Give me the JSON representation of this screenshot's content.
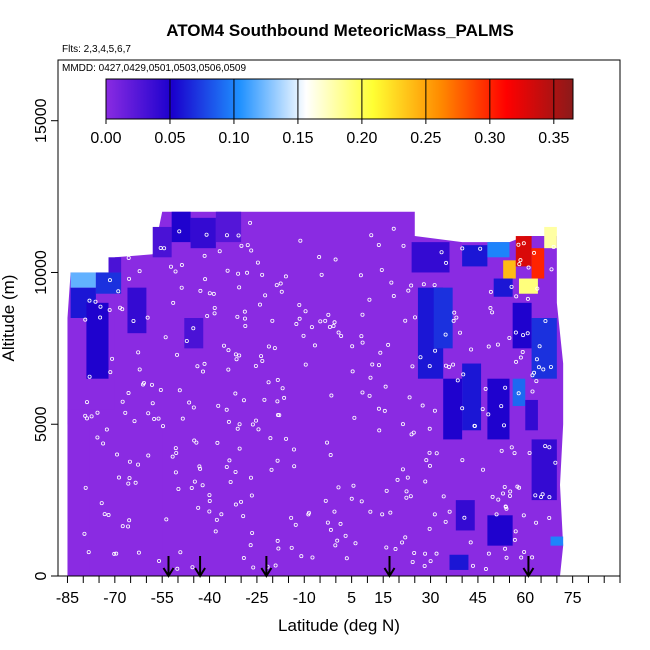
{
  "chart_data": {
    "type": "heatmap",
    "title": "ATOM4 Southbound MeteoricMass_PALMS",
    "subtitle_flights": "Flts: 2,3,4,5,6,7",
    "subtitle_dates": "MMDD: 0427,0429,0501,0503,0506,0509",
    "xlabel": "Latitude (deg N)",
    "ylabel": "Altitude (m)",
    "xlim": [
      -88,
      90
    ],
    "ylim": [
      0,
      17000
    ],
    "x_ticks": [
      -85,
      -70,
      -55,
      -40,
      -25,
      -10,
      5,
      15,
      30,
      45,
      60,
      75
    ],
    "x_tick_labels": [
      "-85",
      "-70",
      "-55",
      "-40",
      "-25",
      "-10",
      "5",
      "15",
      "30",
      "45",
      "60",
      "75"
    ],
    "y_ticks": [
      0,
      5000,
      10000,
      15000
    ],
    "y_tick_labels": [
      "0",
      "5000",
      "10000",
      "15000"
    ],
    "colorbar": {
      "min": 0.0,
      "max": 0.365,
      "ticks": [
        0.0,
        0.05,
        0.1,
        0.15,
        0.2,
        0.25,
        0.3,
        0.35
      ],
      "tick_labels": [
        "0.00",
        "0.05",
        "0.10",
        "0.15",
        "0.20",
        "0.25",
        "0.30",
        "0.35"
      ],
      "colors": [
        "#8a2be2",
        "#1a00cd",
        "#1e90ff",
        "#ffffff",
        "#ffff33",
        "#ff8c00",
        "#ff0000",
        "#8b1a1a"
      ]
    },
    "arrow_latitudes": [
      -53,
      -43,
      -22,
      17,
      61
    ],
    "regions": [
      {
        "x": [
          -85,
          -78
        ],
        "y": [
          0,
          5500
        ],
        "v": 0.0
      },
      {
        "x": [
          -84,
          -70
        ],
        "y": [
          5500,
          10000
        ],
        "v": 0.0
      },
      {
        "x": [
          -84,
          -76
        ],
        "y": [
          8500,
          9500
        ],
        "v": 0.06
      },
      {
        "x": [
          -79,
          -72
        ],
        "y": [
          6500,
          9000
        ],
        "v": 0.05
      },
      {
        "x": [
          -84,
          -76
        ],
        "y": [
          9500,
          10000
        ],
        "v": 0.12
      },
      {
        "x": [
          -76,
          -68
        ],
        "y": [
          9300,
          10000
        ],
        "v": 0.07
      },
      {
        "x": [
          -72,
          -68
        ],
        "y": [
          10000,
          10500
        ],
        "v": 0.03
      },
      {
        "x": [
          -66,
          -60
        ],
        "y": [
          8000,
          9500
        ],
        "v": 0.04
      },
      {
        "x": [
          -58,
          -52
        ],
        "y": [
          10500,
          11500
        ],
        "v": 0.03
      },
      {
        "x": [
          -52,
          -46
        ],
        "y": [
          11000,
          12000
        ],
        "v": 0.05
      },
      {
        "x": [
          -46,
          -38
        ],
        "y": [
          10800,
          11800
        ],
        "v": 0.04
      },
      {
        "x": [
          -38,
          -30
        ],
        "y": [
          11000,
          12000
        ],
        "v": 0.025
      },
      {
        "x": [
          -48,
          -42
        ],
        "y": [
          7500,
          8500
        ],
        "v": 0.03
      },
      {
        "x": [
          24,
          36
        ],
        "y": [
          10000,
          11000
        ],
        "v": 0.04
      },
      {
        "x": [
          26,
          34
        ],
        "y": [
          6500,
          9500
        ],
        "v": 0.06
      },
      {
        "x": [
          31,
          37
        ],
        "y": [
          7500,
          9500
        ],
        "v": 0.07
      },
      {
        "x": [
          34,
          40
        ],
        "y": [
          4500,
          6500
        ],
        "v": 0.05
      },
      {
        "x": [
          40,
          46
        ],
        "y": [
          4800,
          7000
        ],
        "v": 0.06
      },
      {
        "x": [
          38,
          44
        ],
        "y": [
          1500,
          2500
        ],
        "v": 0.04
      },
      {
        "x": [
          36,
          42
        ],
        "y": [
          200,
          700
        ],
        "v": 0.06
      },
      {
        "x": [
          40,
          48
        ],
        "y": [
          10200,
          10900
        ],
        "v": 0.06
      },
      {
        "x": [
          48,
          55
        ],
        "y": [
          10500,
          11000
        ],
        "v": 0.1
      },
      {
        "x": [
          53,
          57
        ],
        "y": [
          9800,
          10400
        ],
        "v": 0.24
      },
      {
        "x": [
          57,
          62
        ],
        "y": [
          10200,
          11200
        ],
        "v": 0.33
      },
      {
        "x": [
          62,
          66
        ],
        "y": [
          9800,
          10800
        ],
        "v": 0.3
      },
      {
        "x": [
          66,
          70
        ],
        "y": [
          10800,
          11500
        ],
        "v": 0.18
      },
      {
        "x": [
          58,
          64
        ],
        "y": [
          9300,
          9800
        ],
        "v": 0.19
      },
      {
        "x": [
          50,
          56
        ],
        "y": [
          9200,
          9800
        ],
        "v": 0.06
      },
      {
        "x": [
          56,
          62
        ],
        "y": [
          7500,
          9000
        ],
        "v": 0.05
      },
      {
        "x": [
          62,
          70
        ],
        "y": [
          6500,
          8500
        ],
        "v": 0.07
      },
      {
        "x": [
          56,
          60
        ],
        "y": [
          5600,
          6500
        ],
        "v": 0.09
      },
      {
        "x": [
          48,
          55
        ],
        "y": [
          4500,
          6500
        ],
        "v": 0.05
      },
      {
        "x": [
          60,
          64
        ],
        "y": [
          4800,
          5800
        ],
        "v": 0.04
      },
      {
        "x": [
          68,
          72
        ],
        "y": [
          1000,
          1300
        ],
        "v": 0.1
      },
      {
        "x": [
          62,
          70
        ],
        "y": [
          2500,
          4500
        ],
        "v": 0.04
      },
      {
        "x": [
          48,
          56
        ],
        "y": [
          1000,
          2000
        ],
        "v": 0.05
      },
      {
        "x": [
          -65,
          -55
        ],
        "y": [
          0,
          5000
        ],
        "v": 0.0
      }
    ]
  }
}
